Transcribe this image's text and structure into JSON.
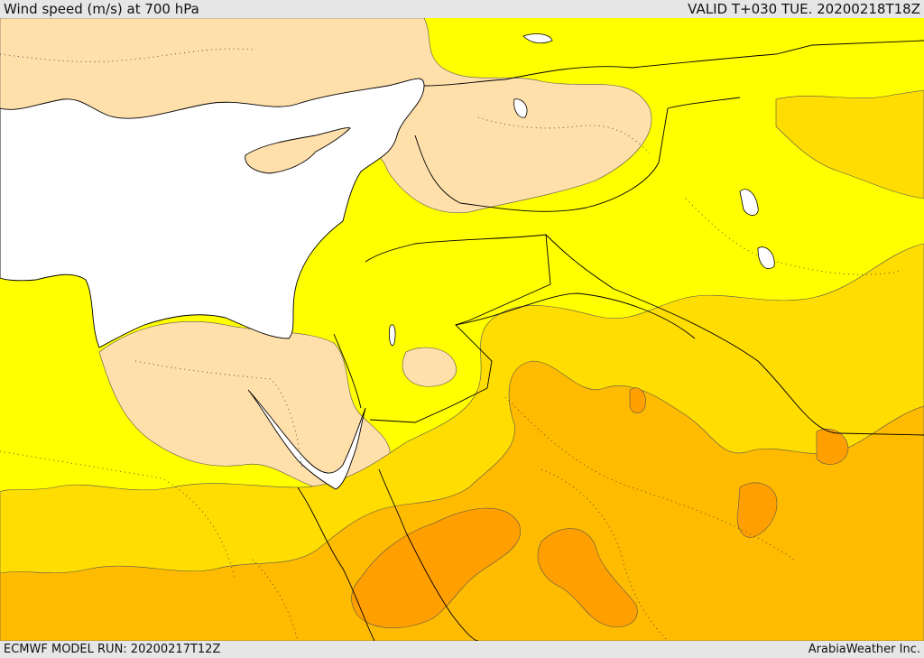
{
  "header": {
    "title": "Wind speed (m/s) at 700 hPa",
    "valid_time": "VALID T+030 TUE. 20200218T18Z"
  },
  "footer": {
    "model_run": "ECMWF MODEL RUN: 20200217T12Z",
    "credit": "ArabiaWeather Inc."
  },
  "map": {
    "colors": {
      "sea": "#ffffff",
      "band_lowest": "#ffdfaa",
      "band_low": "#ffff00",
      "band_mid": "#ffdd00",
      "band_high": "#ffbb00",
      "band_highest": "#ff9f00",
      "coastline": "#000000",
      "contour": "#555555"
    }
  }
}
